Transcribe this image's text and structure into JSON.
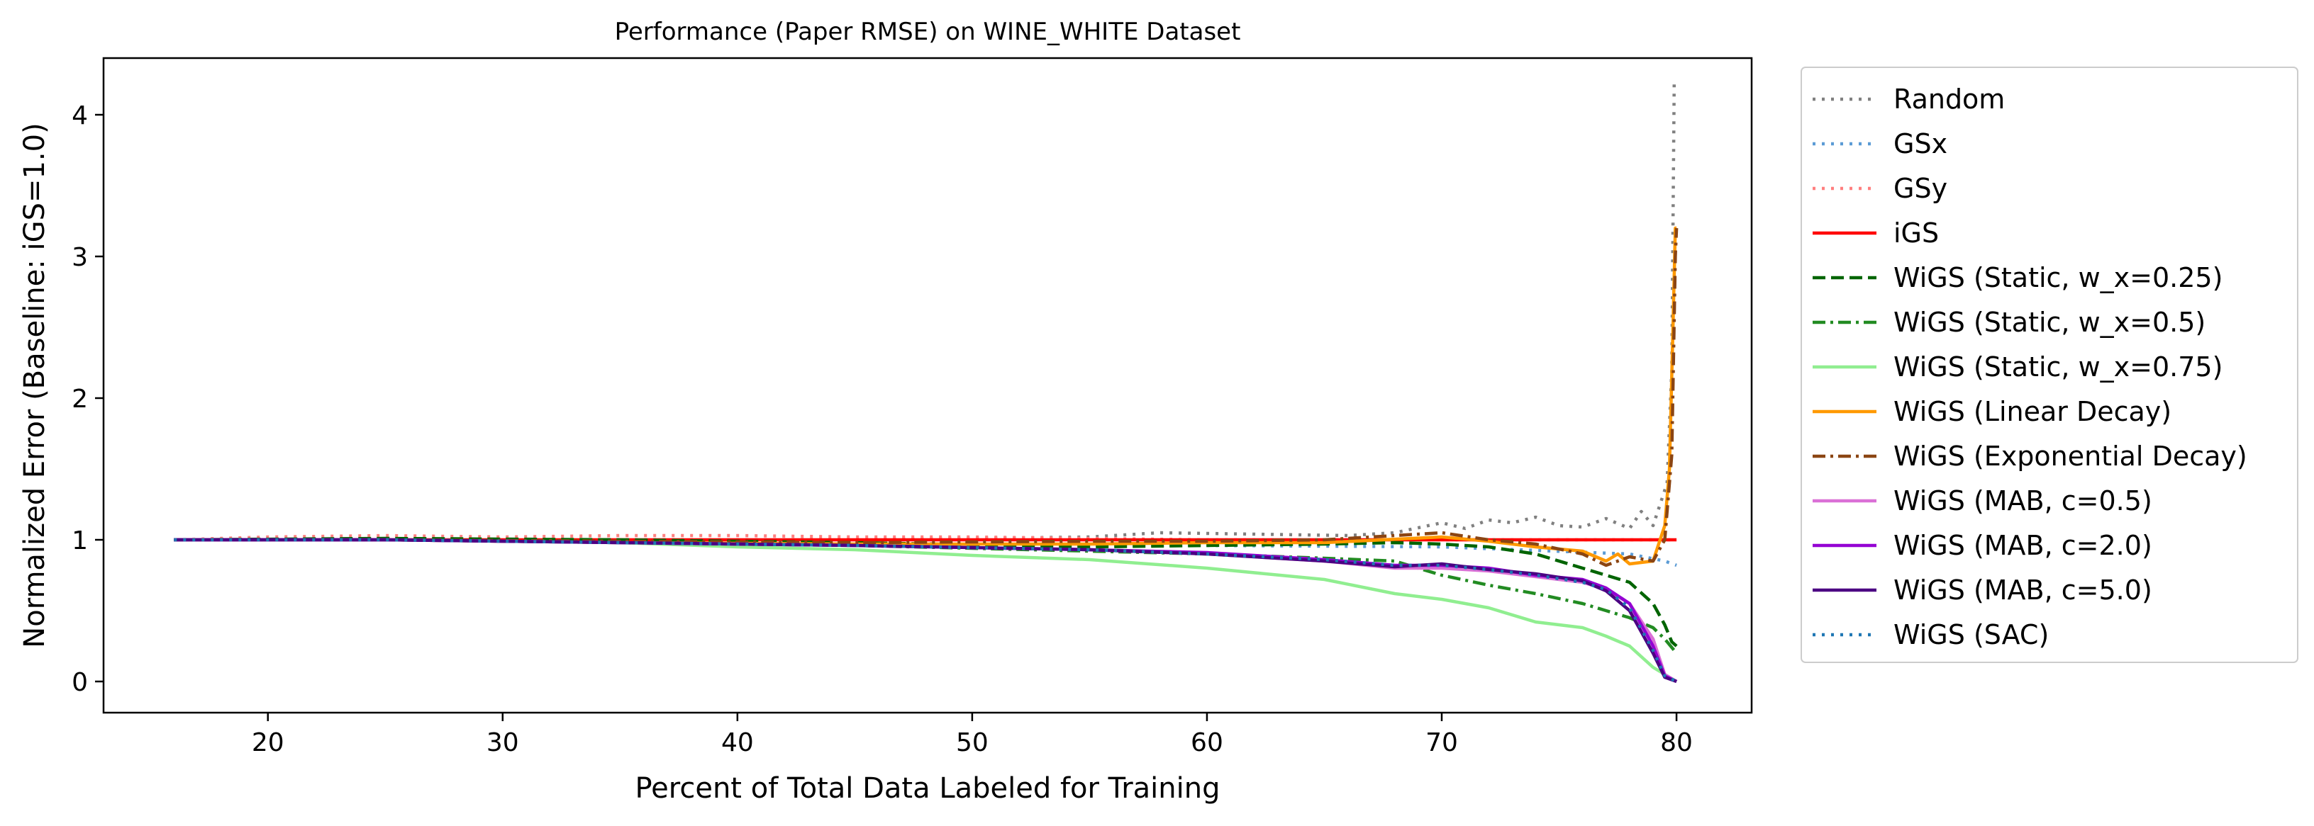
{
  "chart_data": {
    "type": "line",
    "title": "Performance (Paper RMSE) on WINE_WHITE Dataset",
    "xlabel": "Percent of Total Data Labeled for Training",
    "ylabel": "Normalized Error (Baseline: iGS=1.0)",
    "xlim": [
      13,
      83.2
    ],
    "ylim": [
      -0.22,
      4.4
    ],
    "xticks": [
      20,
      30,
      40,
      50,
      60,
      70,
      80
    ],
    "yticks": [
      0,
      1,
      2,
      3,
      4
    ],
    "grid": false,
    "legend_position": "outside-right",
    "series": [
      {
        "name": "Random",
        "color": "#808080",
        "style": "dotted",
        "points": [
          [
            16,
            1.0
          ],
          [
            25,
            1.01
          ],
          [
            35,
            1.0
          ],
          [
            45,
            1.0
          ],
          [
            50,
            1.01
          ],
          [
            55,
            1.02
          ],
          [
            58,
            1.05
          ],
          [
            62,
            1.04
          ],
          [
            66,
            1.03
          ],
          [
            68,
            1.05
          ],
          [
            70,
            1.12
          ],
          [
            71,
            1.08
          ],
          [
            72,
            1.14
          ],
          [
            73,
            1.12
          ],
          [
            74,
            1.16
          ],
          [
            75,
            1.1
          ],
          [
            76,
            1.09
          ],
          [
            77,
            1.15
          ],
          [
            78,
            1.08
          ],
          [
            78.5,
            1.2
          ],
          [
            79,
            1.1
          ],
          [
            79.3,
            1.25
          ],
          [
            79.6,
            1.4
          ],
          [
            79.8,
            2.2
          ],
          [
            79.9,
            4.22
          ],
          [
            80,
            4.22
          ]
        ]
      },
      {
        "name": "GSx",
        "color": "#5B9BD5",
        "style": "dotted",
        "points": [
          [
            16,
            1.0
          ],
          [
            30,
            1.0
          ],
          [
            40,
            0.98
          ],
          [
            50,
            0.97
          ],
          [
            60,
            0.96
          ],
          [
            70,
            0.95
          ],
          [
            78,
            0.9
          ],
          [
            79.5,
            0.85
          ],
          [
            80,
            0.82
          ]
        ]
      },
      {
        "name": "GSy",
        "color": "#FF7F7F",
        "style": "dotted",
        "points": [
          [
            16,
            1.0
          ],
          [
            20,
            1.02
          ],
          [
            25,
            1.03
          ],
          [
            30,
            1.02
          ],
          [
            35,
            1.03
          ],
          [
            40,
            1.03
          ],
          [
            45,
            1.02
          ],
          [
            50,
            1.02
          ],
          [
            55,
            1.01
          ],
          [
            60,
            1.0
          ],
          [
            65,
            1.0
          ],
          [
            70,
            1.0
          ],
          [
            75,
            1.0
          ],
          [
            80,
            1.0
          ]
        ]
      },
      {
        "name": "iGS",
        "color": "#FF0000",
        "style": "solid",
        "points": [
          [
            16,
            1.0
          ],
          [
            80,
            1.0
          ]
        ]
      },
      {
        "name": "WiGS (Static, w_x=0.25)",
        "color": "#006400",
        "style": "dashed",
        "points": [
          [
            16,
            1.0
          ],
          [
            25,
            1.01
          ],
          [
            35,
            1.0
          ],
          [
            45,
            0.98
          ],
          [
            55,
            0.95
          ],
          [
            60,
            0.96
          ],
          [
            65,
            0.97
          ],
          [
            68,
            0.98
          ],
          [
            70,
            0.97
          ],
          [
            72,
            0.95
          ],
          [
            74,
            0.9
          ],
          [
            76,
            0.8
          ],
          [
            77,
            0.75
          ],
          [
            78,
            0.7
          ],
          [
            79,
            0.55
          ],
          [
            79.5,
            0.4
          ],
          [
            79.8,
            0.28
          ],
          [
            80,
            0.25
          ]
        ]
      },
      {
        "name": "WiGS (Static, w_x=0.5)",
        "color": "#228B22",
        "style": "dashdot",
        "points": [
          [
            16,
            1.0
          ],
          [
            25,
            1.0
          ],
          [
            35,
            0.99
          ],
          [
            45,
            0.96
          ],
          [
            55,
            0.92
          ],
          [
            60,
            0.9
          ],
          [
            65,
            0.87
          ],
          [
            68,
            0.85
          ],
          [
            70,
            0.75
          ],
          [
            72,
            0.68
          ],
          [
            74,
            0.62
          ],
          [
            76,
            0.55
          ],
          [
            77,
            0.5
          ],
          [
            78,
            0.45
          ],
          [
            79,
            0.38
          ],
          [
            79.5,
            0.3
          ],
          [
            80,
            0.2
          ]
        ]
      },
      {
        "name": "WiGS (Static, w_x=0.75)",
        "color": "#90EE90",
        "style": "solid",
        "points": [
          [
            16,
            1.0
          ],
          [
            25,
            1.0
          ],
          [
            35,
            0.98
          ],
          [
            40,
            0.95
          ],
          [
            45,
            0.93
          ],
          [
            50,
            0.89
          ],
          [
            55,
            0.86
          ],
          [
            60,
            0.8
          ],
          [
            65,
            0.72
          ],
          [
            68,
            0.62
          ],
          [
            70,
            0.58
          ],
          [
            72,
            0.52
          ],
          [
            74,
            0.42
          ],
          [
            76,
            0.38
          ],
          [
            77,
            0.32
          ],
          [
            78,
            0.25
          ],
          [
            79,
            0.1
          ],
          [
            79.5,
            0.05
          ],
          [
            80,
            0.0
          ]
        ]
      },
      {
        "name": "WiGS (Linear Decay)",
        "color": "#FF9900",
        "style": "solid",
        "points": [
          [
            16,
            1.0
          ],
          [
            25,
            1.0
          ],
          [
            35,
            0.98
          ],
          [
            45,
            0.97
          ],
          [
            55,
            0.97
          ],
          [
            60,
            0.98
          ],
          [
            65,
            0.98
          ],
          [
            70,
            1.02
          ],
          [
            72,
            0.99
          ],
          [
            74,
            0.95
          ],
          [
            76,
            0.92
          ],
          [
            77,
            0.85
          ],
          [
            77.5,
            0.9
          ],
          [
            78,
            0.83
          ],
          [
            79,
            0.85
          ],
          [
            79.5,
            1.1
          ],
          [
            79.7,
            1.5
          ],
          [
            79.85,
            2.5
          ],
          [
            79.95,
            3.2
          ],
          [
            80,
            3.2
          ]
        ]
      },
      {
        "name": "WiGS (Exponential Decay)",
        "color": "#8B4513",
        "style": "dashdot",
        "points": [
          [
            16,
            1.0
          ],
          [
            25,
            1.0
          ],
          [
            35,
            0.99
          ],
          [
            45,
            0.98
          ],
          [
            55,
            0.99
          ],
          [
            60,
            0.99
          ],
          [
            65,
            1.0
          ],
          [
            70,
            1.05
          ],
          [
            72,
            1.0
          ],
          [
            74,
            0.97
          ],
          [
            76,
            0.9
          ],
          [
            77,
            0.82
          ],
          [
            78,
            0.88
          ],
          [
            79,
            0.85
          ],
          [
            79.5,
            1.0
          ],
          [
            79.8,
            1.6
          ],
          [
            79.95,
            3.0
          ],
          [
            80,
            3.2
          ]
        ]
      },
      {
        "name": "WiGS (MAB, c=0.5)",
        "color": "#DA70D6",
        "style": "solid",
        "points": [
          [
            16,
            1.0
          ],
          [
            25,
            1.0
          ],
          [
            35,
            0.98
          ],
          [
            45,
            0.96
          ],
          [
            55,
            0.93
          ],
          [
            60,
            0.9
          ],
          [
            65,
            0.85
          ],
          [
            68,
            0.8
          ],
          [
            70,
            0.8
          ],
          [
            72,
            0.78
          ],
          [
            74,
            0.74
          ],
          [
            76,
            0.7
          ],
          [
            77,
            0.65
          ],
          [
            78,
            0.55
          ],
          [
            79,
            0.3
          ],
          [
            79.5,
            0.05
          ],
          [
            80,
            0.0
          ]
        ]
      },
      {
        "name": "WiGS (MAB, c=2.0)",
        "color": "#9400D3",
        "style": "solid",
        "points": [
          [
            16,
            1.0
          ],
          [
            25,
            1.0
          ],
          [
            35,
            0.98
          ],
          [
            45,
            0.96
          ],
          [
            55,
            0.93
          ],
          [
            60,
            0.91
          ],
          [
            65,
            0.86
          ],
          [
            68,
            0.82
          ],
          [
            70,
            0.82
          ],
          [
            72,
            0.8
          ],
          [
            74,
            0.75
          ],
          [
            76,
            0.72
          ],
          [
            77,
            0.66
          ],
          [
            78,
            0.55
          ],
          [
            79,
            0.25
          ],
          [
            79.5,
            0.04
          ],
          [
            80,
            0.0
          ]
        ]
      },
      {
        "name": "WiGS (MAB, c=5.0)",
        "color": "#4B0082",
        "style": "solid",
        "points": [
          [
            16,
            1.0
          ],
          [
            25,
            1.0
          ],
          [
            35,
            0.98
          ],
          [
            45,
            0.96
          ],
          [
            55,
            0.93
          ],
          [
            60,
            0.9
          ],
          [
            65,
            0.85
          ],
          [
            68,
            0.81
          ],
          [
            70,
            0.83
          ],
          [
            72,
            0.79
          ],
          [
            74,
            0.76
          ],
          [
            76,
            0.71
          ],
          [
            77,
            0.64
          ],
          [
            78,
            0.5
          ],
          [
            79,
            0.2
          ],
          [
            79.5,
            0.03
          ],
          [
            80,
            0.0
          ]
        ]
      },
      {
        "name": "WiGS (SAC)",
        "color": "#1F77B4",
        "style": "dotted",
        "points": [
          [
            16,
            1.0
          ],
          [
            25,
            1.0
          ],
          [
            35,
            0.98
          ],
          [
            45,
            0.96
          ],
          [
            55,
            0.93
          ],
          [
            60,
            0.9
          ],
          [
            65,
            0.86
          ],
          [
            68,
            0.82
          ],
          [
            70,
            0.82
          ],
          [
            72,
            0.79
          ],
          [
            74,
            0.75
          ],
          [
            76,
            0.7
          ],
          [
            77,
            0.65
          ],
          [
            78,
            0.52
          ],
          [
            79,
            0.22
          ],
          [
            79.5,
            0.04
          ],
          [
            80,
            0.0
          ]
        ]
      }
    ]
  }
}
